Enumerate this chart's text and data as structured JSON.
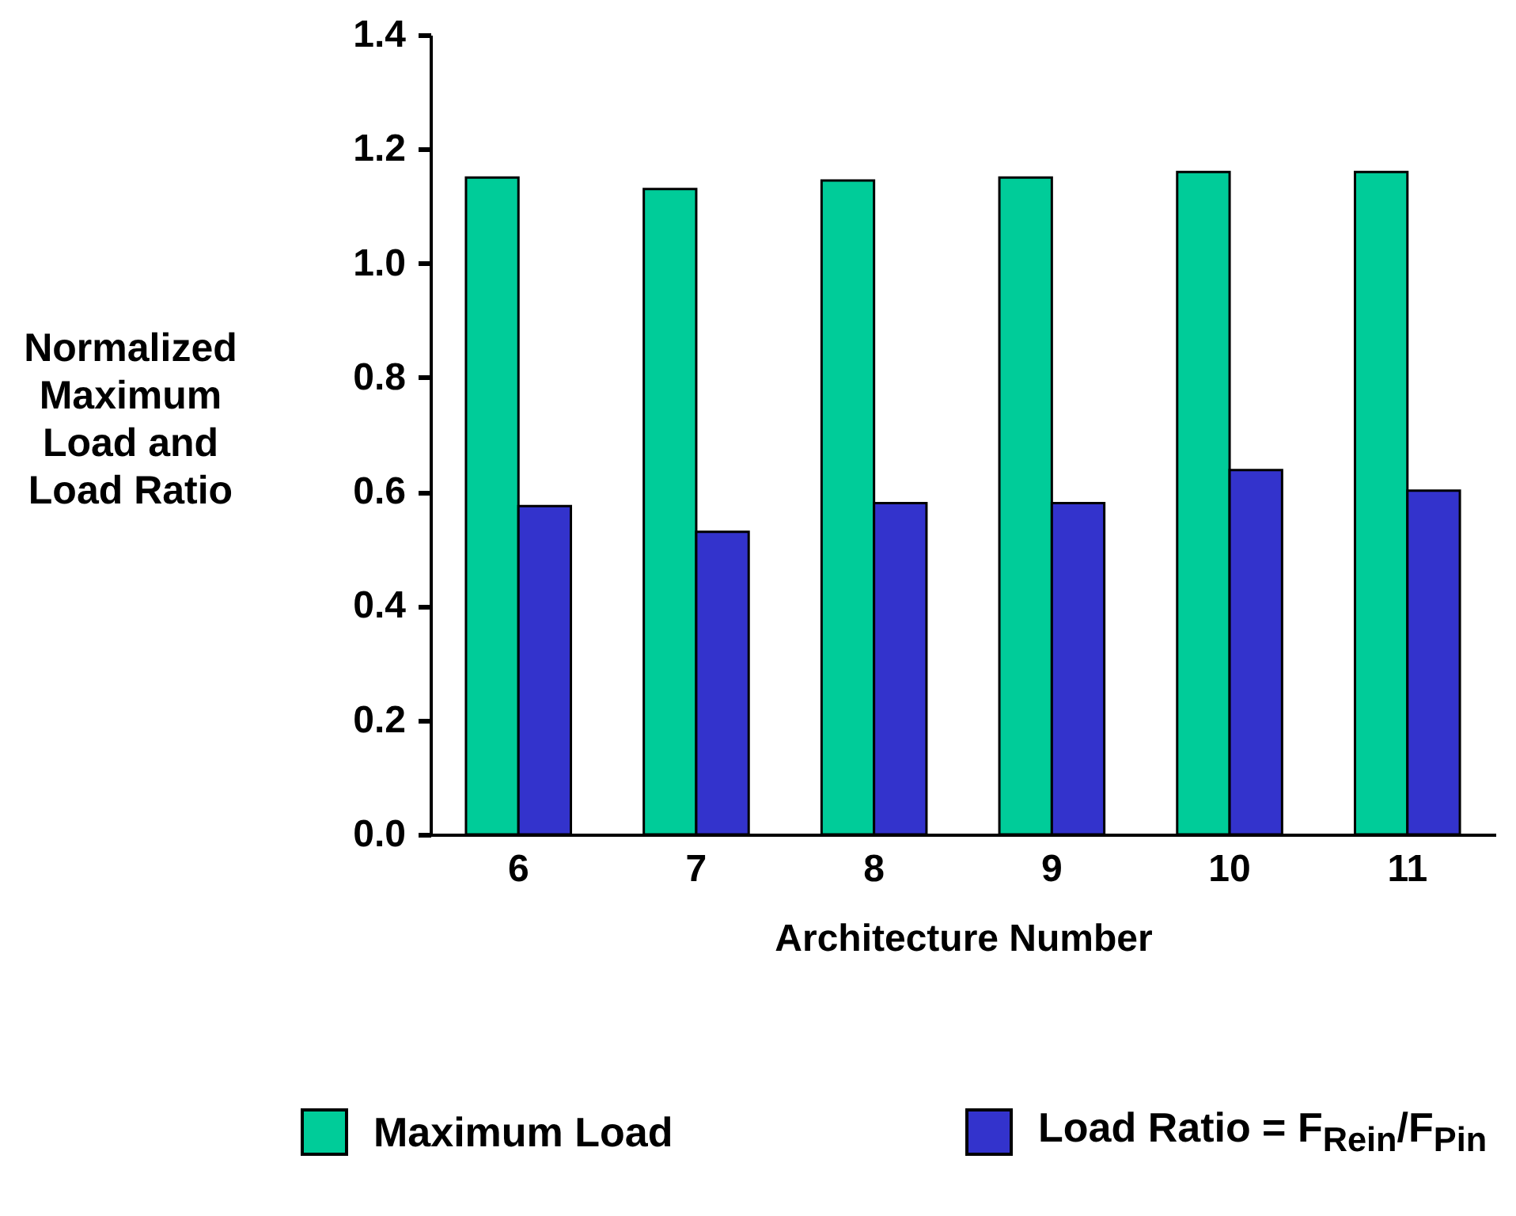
{
  "chart_data": {
    "type": "bar",
    "xlabel": "Architecture Number",
    "ylabel": "Normalized Maximum Load and Load Ratio",
    "categories": [
      "6",
      "7",
      "8",
      "9",
      "10",
      "11"
    ],
    "series": [
      {
        "name": "Maximum Load",
        "color": "#00cc99",
        "values": [
          1.15,
          1.13,
          1.145,
          1.15,
          1.16,
          1.16
        ]
      },
      {
        "name": "Load Ratio = F$_{Rein}$/F$_{Pin}$",
        "color": "#3333cc",
        "values": [
          0.575,
          0.53,
          0.58,
          0.58,
          0.638,
          0.602
        ]
      }
    ],
    "ylim": [
      0,
      1.4
    ],
    "yticks": [
      {
        "value": 0,
        "label": "0.0"
      },
      {
        "value": 0.2,
        "label": "0.2"
      },
      {
        "value": 0.4,
        "label": "0.4"
      },
      {
        "value": 0.6,
        "label": "0.6"
      },
      {
        "value": 0.8,
        "label": "0.8"
      },
      {
        "value": 1,
        "label": "1.0"
      },
      {
        "value": 1.2,
        "label": "1.2"
      },
      {
        "value": 1.4,
        "label": "1.4"
      }
    ],
    "grid": false,
    "legend": "bottom"
  }
}
